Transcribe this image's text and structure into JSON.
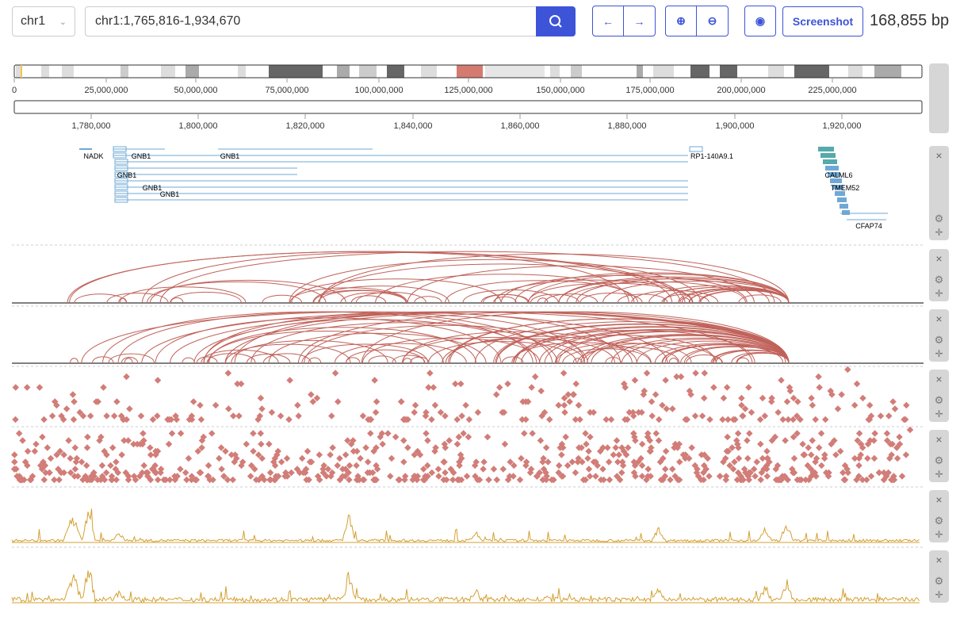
{
  "toolbar": {
    "chromosome": "chr1",
    "locus": "chr1:1,765,816-1,934,670",
    "screenshot_button": "Screenshot",
    "width_label": "168,855 bp"
  },
  "ideogram": {
    "ticks": [
      "0",
      "25,000,000",
      "50,000,000",
      "75,000,000",
      "100,000,000",
      "125,000,000",
      "150,000,000",
      "175,000,000",
      "200,000,000",
      "225,000,000"
    ]
  },
  "ruler": {
    "ticks": [
      "1,780,000",
      "1,800,000",
      "1,820,000",
      "1,840,000",
      "1,860,000",
      "1,880,000",
      "1,900,000",
      "1,920,000"
    ]
  },
  "genes": [
    "NADK",
    "GNB1",
    "GNB1",
    "RP1-140A9.1",
    "GNB1",
    "GNB1",
    "GNB1",
    "CALML6",
    "TMEM52",
    "CFAP74"
  ]
}
